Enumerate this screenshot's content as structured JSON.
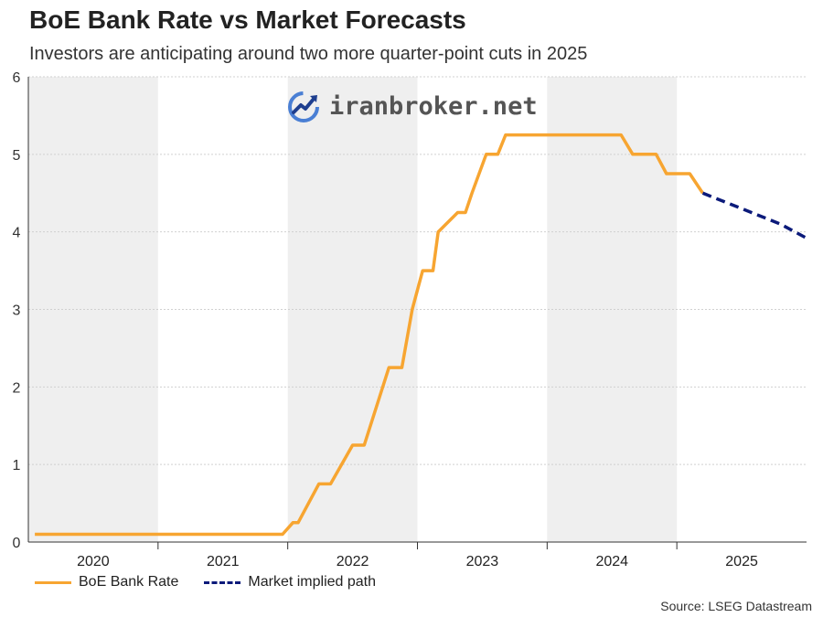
{
  "title": "BoE Bank Rate vs Market Forecasts",
  "subtitle": "Investors are anticipating around two more quarter-point cuts in 2025",
  "watermark": "iranbroker.net",
  "source": "Source: LSEG Datastream",
  "colors": {
    "rate": "#f7a531",
    "market": "#0b1a7a",
    "band": "#efefef",
    "grid": "#d0d0d0",
    "axis": "#333333"
  },
  "chart_data": {
    "type": "line",
    "title": "BoE Bank Rate vs Market Forecasts",
    "xlabel": "",
    "ylabel": "",
    "xlim": [
      2020.0,
      2026.0
    ],
    "ylim": [
      0,
      6
    ],
    "yticks": [
      0,
      1,
      2,
      3,
      4,
      5,
      6
    ],
    "year_labels": [
      "2020",
      "2021",
      "2022",
      "2023",
      "2024",
      "2025"
    ],
    "shaded_years": [
      "2020",
      "2022",
      "2024"
    ],
    "grid": true,
    "legend_position": "bottom-left",
    "series": [
      {
        "name": "BoE Bank Rate",
        "style": "solid",
        "x": [
          2020.05,
          2021.96,
          2022.04,
          2022.08,
          2022.24,
          2022.33,
          2022.5,
          2022.59,
          2022.78,
          2022.88,
          2022.96,
          2023.04,
          2023.12,
          2023.16,
          2023.31,
          2023.37,
          2023.42,
          2023.53,
          2023.62,
          2023.68,
          2024.57,
          2024.66,
          2024.84,
          2024.92,
          2025.1,
          2025.2
        ],
        "y": [
          0.1,
          0.1,
          0.25,
          0.25,
          0.75,
          0.75,
          1.25,
          1.25,
          2.25,
          2.25,
          3.0,
          3.5,
          3.5,
          4.0,
          4.25,
          4.25,
          4.5,
          5.0,
          5.0,
          5.25,
          5.25,
          5.0,
          5.0,
          4.75,
          4.75,
          4.5
        ]
      },
      {
        "name": "Market implied path",
        "style": "dashed",
        "x": [
          2025.2,
          2025.5,
          2025.8,
          2026.0
        ],
        "y": [
          4.5,
          4.3,
          4.1,
          3.92
        ]
      }
    ]
  }
}
